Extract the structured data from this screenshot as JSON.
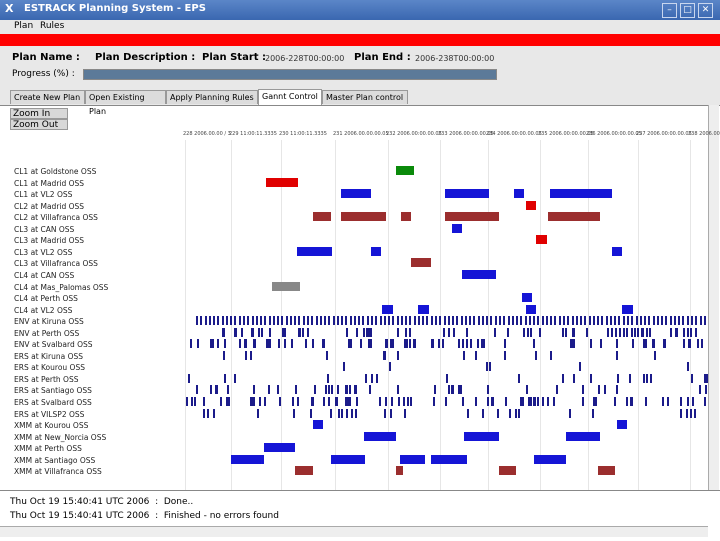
{
  "window": {
    "title": "ESTRACK Planning System - EPS",
    "min": "–",
    "max": "□",
    "close": "✕"
  },
  "menu": [
    "Plan",
    "Rules"
  ],
  "plan": {
    "name_label": "Plan Name :",
    "name_value": "",
    "desc_label": "Plan Description :",
    "start_label": "Plan Start :",
    "start_value": "2006-228T00:00:00",
    "end_label": "Plan End :",
    "end_value": "2006-238T00:00:00",
    "progress_label": "Progress (%) :",
    "progress": 1.0
  },
  "tabs": [
    "Create New Plan",
    "Open Existing Plan",
    "Apply Planning Rules",
    "Gannt Control",
    "Master Plan control"
  ],
  "active_tab": 3,
  "zoom": {
    "in": "Zoom In",
    "out": "Zoom Out"
  },
  "axis_labels": [
    "228 2006.00.00 / 3",
    "229 11:00:11.3335",
    "230 11:00:11.3335",
    "231 2006.00.00.00.05",
    "232 2006.00:00.00.05",
    "233 2006.00:00.00.05",
    "234 2006.00:00.00.05",
    "235 2006.00:00.00.05",
    "236 2006.00:00.00.05",
    "237 2006.00:00.00.05",
    "238 2006.00:00.00.05"
  ],
  "colors": {
    "blue": "#1515d6",
    "red": "#e00000",
    "darkred": "#9b2e2e",
    "green": "#0a8a0a",
    "gray": "#888888",
    "navy": "#1b1b8a"
  },
  "rows": [
    {
      "label": "CL1 at Goldstone OSS",
      "bars": [
        [
          396,
          414,
          "green"
        ]
      ]
    },
    {
      "label": "CL1 at Madrid OSS",
      "bars": [
        [
          266,
          298,
          "red"
        ]
      ]
    },
    {
      "label": "CL1 at VL2 OSS",
      "bars": [
        [
          341,
          371,
          "blue"
        ],
        [
          445,
          489,
          "blue"
        ],
        [
          514,
          524,
          "blue"
        ],
        [
          550,
          612,
          "blue"
        ]
      ]
    },
    {
      "label": "CL2 at Madrid OSS",
      "bars": [
        [
          526,
          536,
          "red"
        ]
      ]
    },
    {
      "label": "CL2 at Villafranca OSS",
      "bars": [
        [
          313,
          331,
          "darkred"
        ],
        [
          341,
          386,
          "darkred"
        ],
        [
          401,
          411,
          "darkred"
        ],
        [
          445,
          499,
          "darkred"
        ],
        [
          548,
          600,
          "darkred"
        ]
      ]
    },
    {
      "label": "CL3 at CAN OSS",
      "bars": [
        [
          452,
          462,
          "blue"
        ]
      ]
    },
    {
      "label": "CL3 at Madrid OSS",
      "bars": [
        [
          536,
          547,
          "red"
        ]
      ]
    },
    {
      "label": "CL3 at VL2 OSS",
      "bars": [
        [
          297,
          332,
          "blue"
        ],
        [
          371,
          381,
          "blue"
        ],
        [
          612,
          622,
          "blue"
        ]
      ]
    },
    {
      "label": "CL3 at Villafranca OSS",
      "bars": [
        [
          411,
          431,
          "darkred"
        ]
      ]
    },
    {
      "label": "CL4 at CAN OSS",
      "bars": [
        [
          462,
          496,
          "blue"
        ]
      ]
    },
    {
      "label": "CL4 at Mas_Palomas OSS",
      "bars": [
        [
          272,
          300,
          "gray"
        ]
      ]
    },
    {
      "label": "CL4 at Perth OSS",
      "bars": [
        [
          522,
          532,
          "blue"
        ]
      ]
    },
    {
      "label": "CL4 at VL2 OSS",
      "bars": [
        [
          382,
          393,
          "blue"
        ],
        [
          418,
          429,
          "blue"
        ],
        [
          526,
          536,
          "blue"
        ],
        [
          622,
          633,
          "blue"
        ]
      ]
    },
    {
      "label": "ENV at Kiruna OSS",
      "ticks": {
        "count": 120,
        "start": 196,
        "end": 708,
        "color": "navy",
        "pattern": "dense"
      }
    },
    {
      "label": "ENV at Perth OSS",
      "ticks": {
        "count": 60,
        "start": 185,
        "end": 708,
        "color": "navy",
        "pattern": "groups"
      }
    },
    {
      "label": "ENV at Svalbard OSS",
      "ticks": {
        "count": 70,
        "start": 185,
        "end": 708,
        "color": "navy",
        "pattern": "groups"
      }
    },
    {
      "label": "ERS at Kiruna OSS",
      "ticks": {
        "count": 14,
        "start": 200,
        "end": 700,
        "color": "navy",
        "pattern": "sparse"
      }
    },
    {
      "label": "ERS at Kourou OSS",
      "ticks": {
        "count": 6,
        "start": 300,
        "end": 690,
        "color": "navy",
        "pattern": "sparse"
      }
    },
    {
      "label": "ERS at Perth OSS",
      "ticks": {
        "count": 22,
        "start": 185,
        "end": 708,
        "color": "navy",
        "pattern": "sparse"
      }
    },
    {
      "label": "ERS at Santiago OSS",
      "ticks": {
        "count": 40,
        "start": 185,
        "end": 708,
        "color": "navy",
        "pattern": "groups"
      }
    },
    {
      "label": "ERS at Svalbard OSS",
      "ticks": {
        "count": 70,
        "start": 185,
        "end": 708,
        "color": "navy",
        "pattern": "groups"
      }
    },
    {
      "label": "ERS at VILSP2 OSS",
      "ticks": {
        "count": 28,
        "start": 185,
        "end": 708,
        "color": "navy",
        "pattern": "sparse"
      }
    },
    {
      "label": "XMM at Kourou OSS",
      "bars": [
        [
          313,
          323,
          "blue"
        ],
        [
          617,
          627,
          "blue"
        ]
      ]
    },
    {
      "label": "XMM at New_Norcia OSS",
      "bars": [
        [
          364,
          396,
          "blue"
        ],
        [
          464,
          499,
          "blue"
        ],
        [
          566,
          600,
          "blue"
        ]
      ]
    },
    {
      "label": "XMM at Perth OSS",
      "bars": [
        [
          264,
          295,
          "blue"
        ]
      ]
    },
    {
      "label": "XMM at Santiago OSS",
      "bars": [
        [
          231,
          264,
          "blue"
        ],
        [
          331,
          365,
          "blue"
        ],
        [
          400,
          425,
          "blue"
        ],
        [
          431,
          467,
          "blue"
        ],
        [
          534,
          566,
          "blue"
        ]
      ]
    },
    {
      "label": "XMM at Villafranca OSS",
      "bars": [
        [
          295,
          313,
          "darkred"
        ],
        [
          396,
          403,
          "darkred"
        ],
        [
          499,
          516,
          "darkred"
        ],
        [
          598,
          615,
          "darkred"
        ]
      ]
    }
  ],
  "log": [
    "Thu Oct 19 15:40:41 UTC 2006  :  Done..",
    "Thu Oct 19 15:40:41 UTC 2006  :  Finished - no errors found"
  ]
}
